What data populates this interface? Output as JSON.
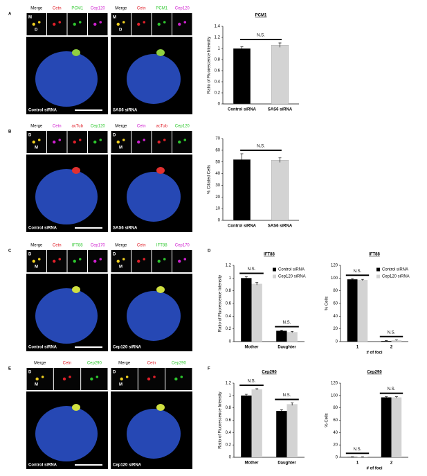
{
  "panels": [
    {
      "letter": "A",
      "channels": [
        {
          "text": "Merge",
          "color": "#000000"
        },
        {
          "text": "Cetn",
          "color": "#e0202a"
        },
        {
          "text": "PCM1",
          "color": "#2ec82e"
        },
        {
          "text": "Cep120",
          "color": "#d020d0"
        }
      ],
      "inset_marks": [
        "M",
        "D"
      ],
      "captions": [
        "Control siRNA",
        "SAS6 siRNA"
      ]
    },
    {
      "letter": "B",
      "channels": [
        {
          "text": "Merge",
          "color": "#000000"
        },
        {
          "text": "Cetn",
          "color": "#d020d0"
        },
        {
          "text": "acTub",
          "color": "#e0202a"
        },
        {
          "text": "Cep120",
          "color": "#2ec82e"
        }
      ],
      "inset_marks": [
        "D",
        "M"
      ],
      "captions": [
        "Control siRNA",
        "SAS6 siRNA"
      ]
    },
    {
      "letter": "C",
      "channels": [
        {
          "text": "Merge",
          "color": "#000000"
        },
        {
          "text": "Cetn",
          "color": "#e0202a"
        },
        {
          "text": "IFT88",
          "color": "#2ec82e"
        },
        {
          "text": "Cep170",
          "color": "#d020d0"
        }
      ],
      "inset_marks": [
        "D",
        "M"
      ],
      "captions": [
        "Control siRNA",
        "Cep120 siRNA"
      ]
    },
    {
      "letter": "E",
      "channels": [
        {
          "text": "Merge",
          "color": "#000000"
        },
        {
          "text": "Cetn",
          "color": "#e0202a"
        },
        {
          "text": "Cep290",
          "color": "#2ec82e"
        }
      ],
      "inset_marks": [
        "D",
        "M"
      ],
      "captions": [
        "Control siRNA",
        "Cep120 siRNA"
      ]
    }
  ],
  "chart_panel_letters": [
    "D",
    "F"
  ],
  "chart_data": [
    {
      "type": "bar",
      "title": "PCM1",
      "y_label": "Ratio of Fluorescence Intensity",
      "categories": [
        "Control siRNA",
        "SAS6 siRNA"
      ],
      "values": [
        1.0,
        1.06
      ],
      "errors": [
        0.03,
        0.04
      ],
      "colors": [
        "#000000",
        "#d3d3d3"
      ],
      "ylim": [
        0,
        1.4
      ],
      "yticks": [
        0,
        0.2,
        0.4,
        0.6,
        0.8,
        1,
        1.2,
        1.4
      ],
      "annotations": [
        "N.S."
      ]
    },
    {
      "type": "bar",
      "y_label": "% Ciliated Cells",
      "categories": [
        "Control siRNA",
        "SAS6 siRNA"
      ],
      "values": [
        52,
        51.5
      ],
      "errors": [
        5,
        2
      ],
      "colors": [
        "#000000",
        "#d3d3d3"
      ],
      "ylim": [
        0,
        70
      ],
      "yticks": [
        0,
        10,
        20,
        30,
        40,
        50,
        60,
        70
      ],
      "annotations": [
        "N.S."
      ]
    },
    {
      "type": "bar",
      "title": "IFT88",
      "y_label": "Ratio of Fluorescence Intensity",
      "categories": [
        "Mother",
        "Daughter"
      ],
      "series": [
        {
          "name": "Control siRNA",
          "color": "#000000",
          "values": [
            1.0,
            0.17
          ],
          "errors": [
            0.02,
            0.01
          ]
        },
        {
          "name": "Cep120 siRNA",
          "color": "#d3d3d3",
          "values": [
            0.91,
            0.15
          ],
          "errors": [
            0.02,
            0.01
          ]
        }
      ],
      "ylim": [
        0,
        1.2
      ],
      "yticks": [
        0,
        0.2,
        0.4,
        0.6,
        0.8,
        1,
        1.2
      ],
      "legend": "upper right",
      "annotations": [
        "N.S.",
        "N.S."
      ]
    },
    {
      "type": "bar",
      "title": "IFT88",
      "y_label": "% Cells",
      "x_label": "# of foci",
      "categories": [
        "1",
        "2"
      ],
      "series": [
        {
          "name": "Control siRNA",
          "color": "#000000",
          "values": [
            98,
            1
          ],
          "errors": [
            1,
            0.5
          ]
        },
        {
          "name": "Cep120 siRNA",
          "color": "#d3d3d3",
          "values": [
            97,
            2
          ],
          "errors": [
            1,
            0.5
          ]
        }
      ],
      "ylim": [
        0,
        120
      ],
      "yticks": [
        0,
        20,
        40,
        60,
        80,
        100,
        120
      ],
      "legend": "upper right",
      "annotations": [
        "N.S.",
        "N.S."
      ]
    },
    {
      "type": "bar",
      "title": "Cep290",
      "y_label": "Ratio of Fluorescence Intensity",
      "categories": [
        "Mother",
        "Daughter"
      ],
      "series": [
        {
          "color": "#000000",
          "values": [
            1.0,
            0.75
          ],
          "errors": [
            0.02,
            0.02
          ]
        },
        {
          "color": "#d3d3d3",
          "values": [
            1.1,
            0.86
          ],
          "errors": [
            0.01,
            0.02
          ]
        }
      ],
      "ylim": [
        0,
        1.2
      ],
      "yticks": [
        0,
        0.2,
        0.4,
        0.6,
        0.8,
        1,
        1.2
      ],
      "annotations": [
        "N.S.",
        "N.S."
      ]
    },
    {
      "type": "bar",
      "title": "Cep290",
      "y_label": "% Cells",
      "x_label": "# of foci",
      "categories": [
        "1",
        "2"
      ],
      "series": [
        {
          "color": "#000000",
          "values": [
            0.5,
            97
          ],
          "errors": [
            0.3,
            1
          ]
        },
        {
          "color": "#d3d3d3",
          "values": [
            0.5,
            97
          ],
          "errors": [
            0.3,
            1
          ]
        }
      ],
      "ylim": [
        0,
        120
      ],
      "yticks": [
        0,
        20,
        40,
        60,
        80,
        100,
        120
      ],
      "annotations": [
        "N.S.",
        "N.S."
      ]
    }
  ]
}
